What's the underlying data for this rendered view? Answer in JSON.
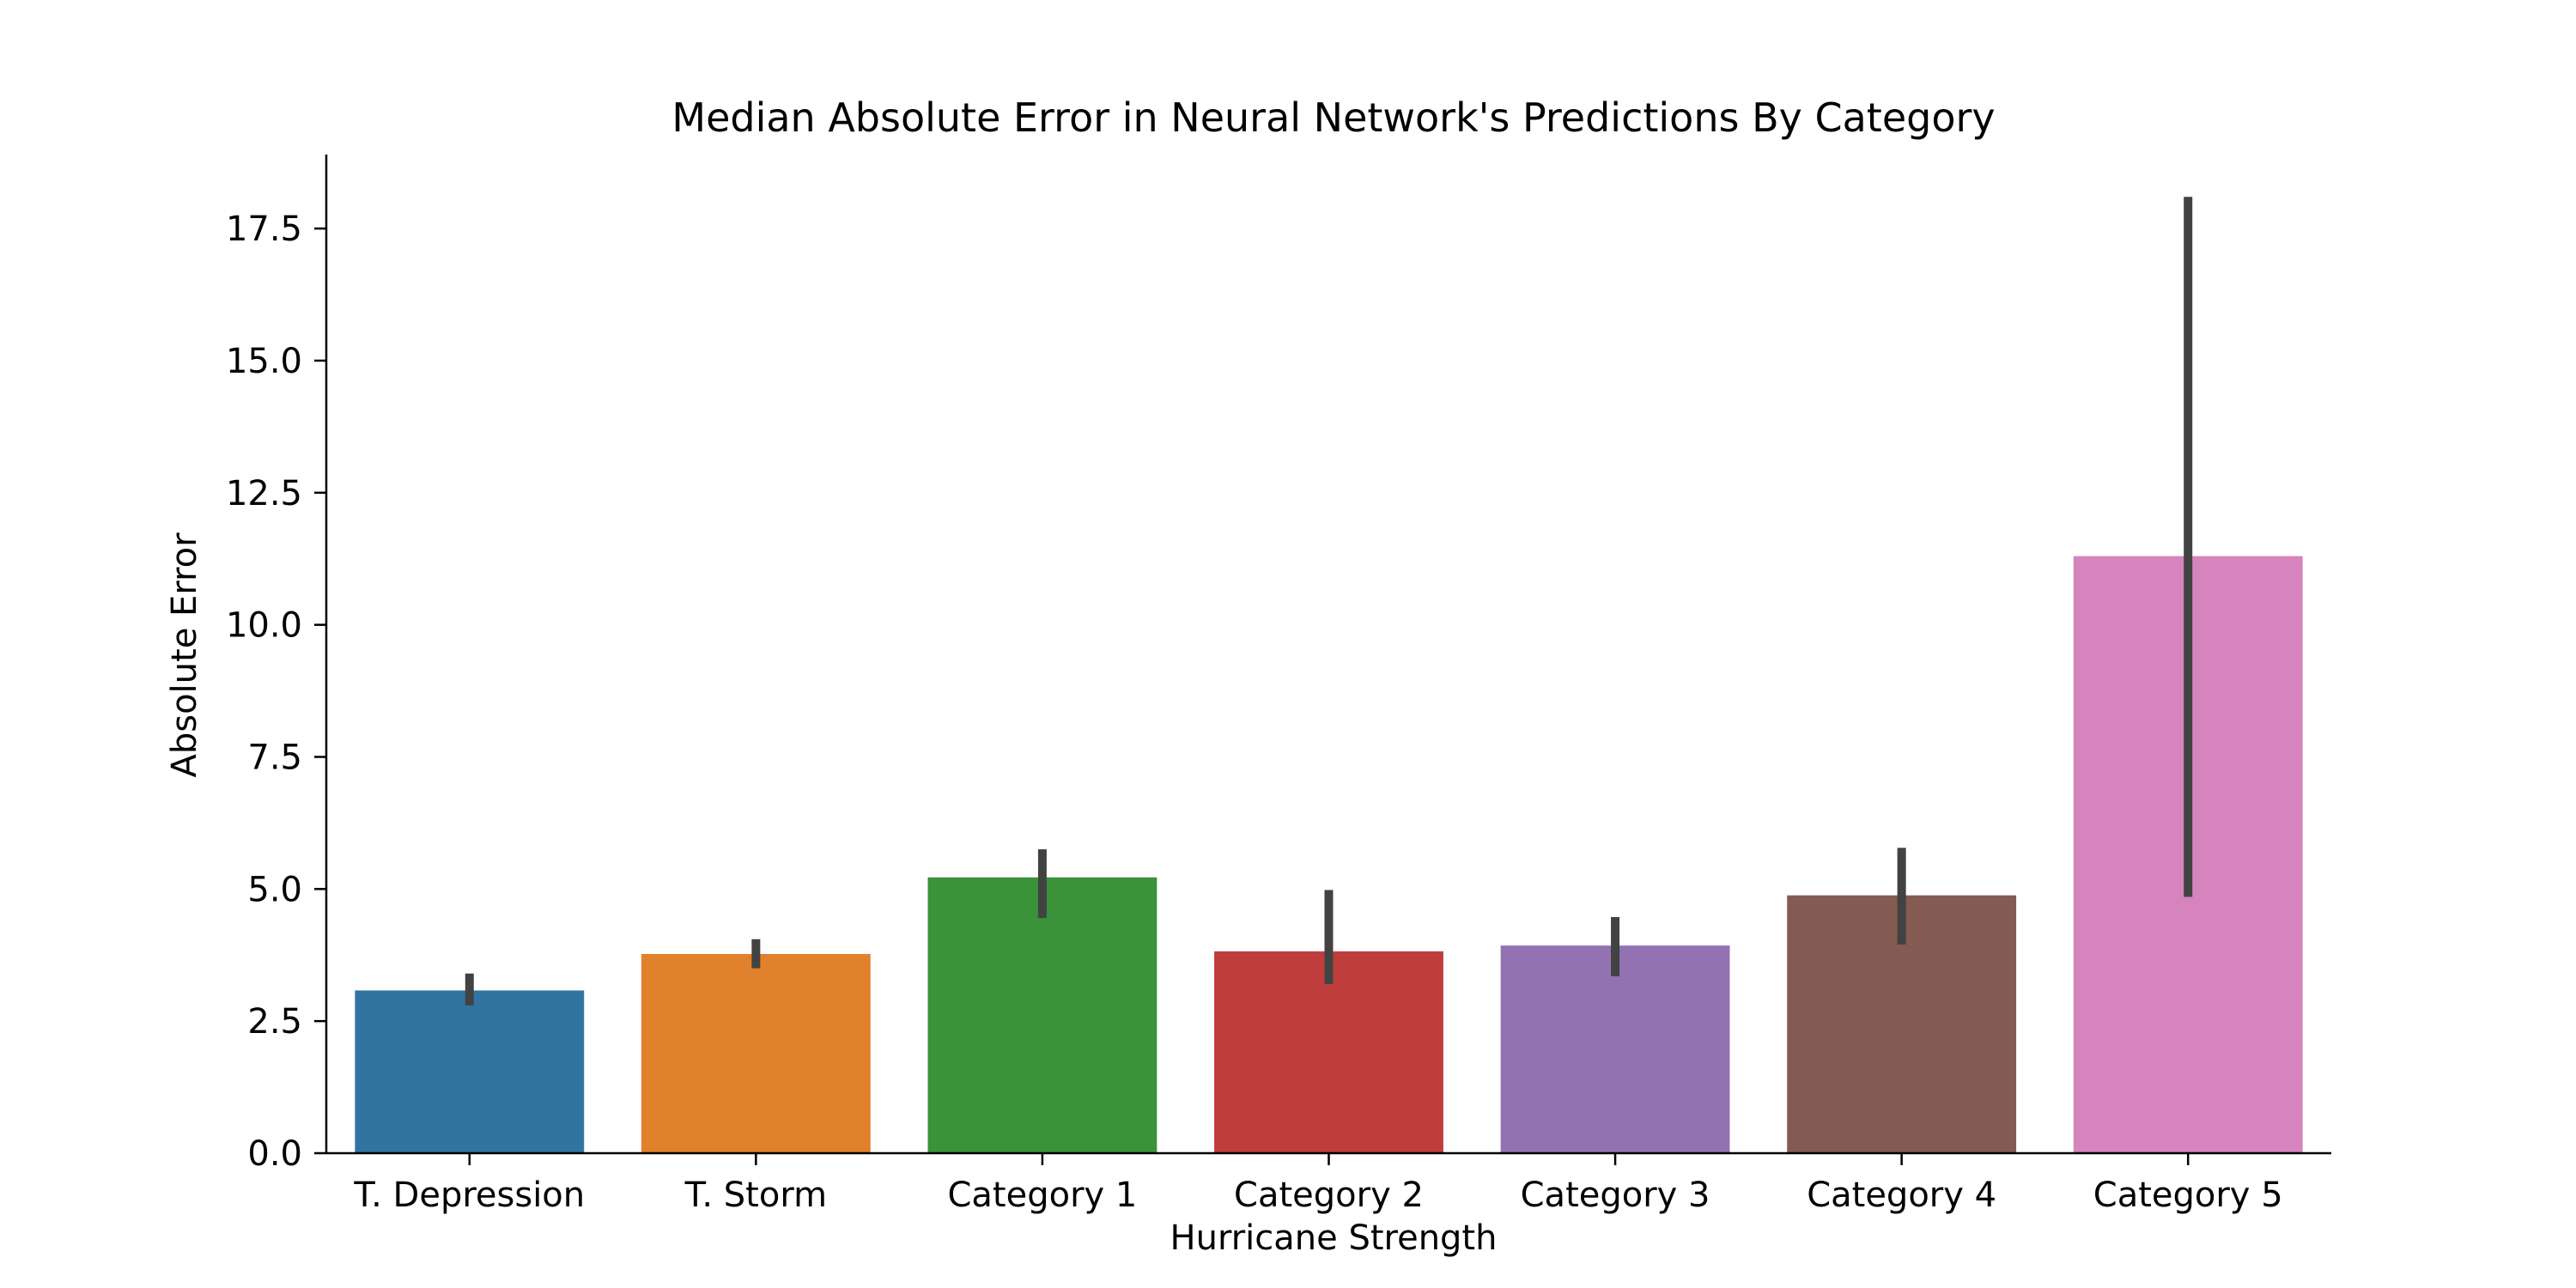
{
  "chart_data": {
    "type": "bar",
    "title": "Median Absolute Error in Neural Network's Predictions By Category",
    "xlabel": "Hurricane Strength",
    "ylabel": "Absolute Error",
    "categories": [
      "T. Depression",
      "T. Storm",
      "Category 1",
      "Category 2",
      "Category 3",
      "Category 4",
      "Category 5"
    ],
    "values": [
      3.08,
      3.77,
      5.22,
      3.82,
      3.93,
      4.88,
      11.3
    ],
    "error_low": [
      2.8,
      3.5,
      4.45,
      3.2,
      3.35,
      3.95,
      4.85
    ],
    "error_high": [
      3.4,
      4.05,
      5.75,
      4.98,
      4.47,
      5.78,
      18.1
    ],
    "ylim": [
      0,
      18.9
    ],
    "yticks": [
      0.0,
      2.5,
      5.0,
      7.5,
      10.0,
      12.5,
      15.0,
      17.5
    ],
    "ytick_labels": [
      "0.0",
      "2.5",
      "5.0",
      "7.5",
      "10.0",
      "12.5",
      "15.0",
      "17.5"
    ],
    "colors": [
      "#3274a1",
      "#e1812c",
      "#3a923a",
      "#c03d3e",
      "#9372b2",
      "#845b53",
      "#d684bd"
    ],
    "error_bar_color": "#424242",
    "grid": false,
    "spines": "left-bottom"
  }
}
